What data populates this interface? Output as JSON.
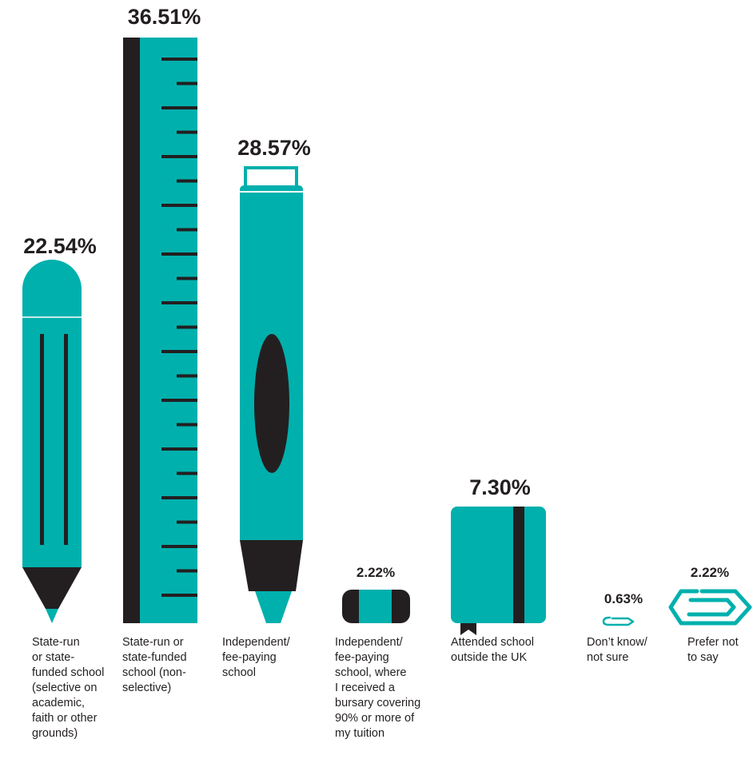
{
  "colors": {
    "teal": "#00b0ad",
    "dark": "#231f20",
    "background": "#ffffff"
  },
  "chart_data": {
    "type": "bar",
    "title": "",
    "xlabel": "",
    "ylabel": "",
    "categories": [
      "State-run or state-funded school (selective on academic, faith or other grounds)",
      "State-run or state-funded school (non-selective)",
      "Independent/ fee-paying school",
      "Independent/ fee-paying school, where I received a bursary covering 90% or more of my tuition",
      "Attended school outside the UK",
      "Don't know/ not sure",
      "Prefer not to say"
    ],
    "values": [
      22.54,
      36.51,
      28.57,
      2.22,
      7.3,
      0.63,
      2.22
    ],
    "value_labels": [
      "22.54%",
      "36.51%",
      "28.57%",
      "2.22%",
      "7.30%",
      "0.63%",
      "2.22%"
    ],
    "category_lines": [
      [
        "State-run",
        "or state-",
        "funded school",
        "(selective on",
        "academic,",
        "faith or other",
        "grounds)"
      ],
      [
        "State-run or",
        "state-funded",
        "school (non-",
        "selective)"
      ],
      [
        "Independent/",
        "fee-paying",
        "school"
      ],
      [
        "Independent/",
        "fee-paying",
        "school, where",
        "I received a",
        "bursary covering",
        "90% or more of",
        "my tuition"
      ],
      [
        "Attended school",
        "outside the UK"
      ],
      [
        "Don’t know/",
        "not sure"
      ],
      [
        "Prefer not",
        "to say"
      ]
    ],
    "icons": [
      "pencil-icon",
      "ruler-icon",
      "highlighter-icon",
      "eraser-icon",
      "notebook-icon",
      "paperclip-icon",
      "paperclip-icon"
    ]
  }
}
